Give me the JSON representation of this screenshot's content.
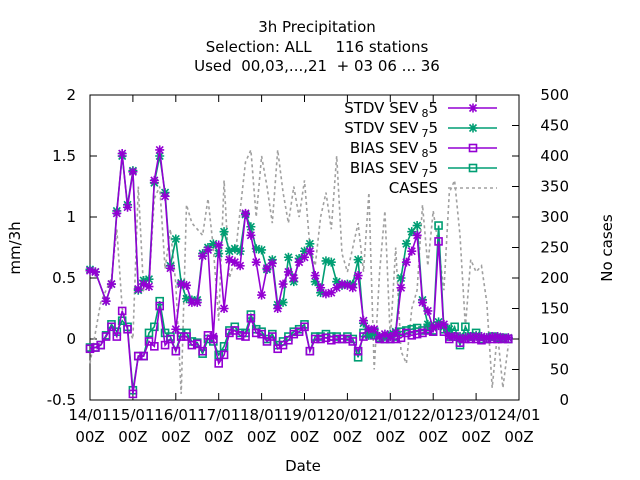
{
  "chart_data": {
    "type": "line",
    "title_lines": [
      "3h Precipitation",
      "Selection: ALL     116 stations",
      "Used  00,03,...,21  + 03 06 ... 36"
    ],
    "xlabel": "Date",
    "ylabel": "mm/3h",
    "y2label": "No cases",
    "x_tick_labels": [
      [
        "14/01",
        "00Z"
      ],
      [
        "15/01",
        "00Z"
      ],
      [
        "16/01",
        "00Z"
      ],
      [
        "17/01",
        "00Z"
      ],
      [
        "18/01",
        "00Z"
      ],
      [
        "19/01",
        "00Z"
      ],
      [
        "20/01",
        "00Z"
      ],
      [
        "21/01",
        "00Z"
      ],
      [
        "22/01",
        "00Z"
      ],
      [
        "23/01",
        "00Z"
      ],
      [
        "24/01",
        "00Z"
      ]
    ],
    "xlim": [
      0,
      10
    ],
    "ylim": [
      -0.5,
      2
    ],
    "y_ticks": [
      "-0.5",
      "0",
      "0.5",
      "1",
      "1.5",
      "2"
    ],
    "y2lim": [
      0,
      500
    ],
    "y2_ticks": [
      "0",
      "50",
      "100",
      "150",
      "200",
      "250",
      "300",
      "350",
      "400",
      "450",
      "500"
    ],
    "legend_position": "top-right",
    "series": [
      {
        "legend": "STDV SEV",
        "sub": "8",
        "suffix": "5",
        "color": "#9400d3",
        "marker": "x",
        "axis": "left",
        "x": [
          0.0,
          0.125,
          0.375,
          0.5,
          0.625,
          0.75,
          0.875,
          1.0,
          1.125,
          1.25,
          1.375,
          1.5,
          1.625,
          1.75,
          1.875,
          2.0,
          2.125,
          2.25,
          2.375,
          2.5,
          2.625,
          2.75,
          2.875,
          3.0,
          3.125,
          3.25,
          3.375,
          3.5,
          3.625,
          3.75,
          3.875,
          4.0,
          4.125,
          4.25,
          4.375,
          4.5,
          4.625,
          4.75,
          4.875,
          5.0,
          5.125,
          5.25,
          5.375,
          5.5,
          5.625,
          5.75,
          5.875,
          6.0,
          6.125,
          6.25,
          6.375,
          6.5,
          6.625,
          6.75,
          6.875,
          7.0,
          7.125,
          7.25,
          7.375,
          7.5,
          7.625,
          7.75,
          7.875,
          8.0,
          8.125,
          8.25,
          8.375,
          8.5,
          8.625,
          8.75,
          8.875,
          9.0,
          9.125,
          9.25,
          9.375,
          9.5,
          9.625,
          9.75
        ],
        "y": [
          0.56,
          0.55,
          0.31,
          0.45,
          1.03,
          1.52,
          1.08,
          1.37,
          0.41,
          0.45,
          0.43,
          1.3,
          1.55,
          1.17,
          0.58,
          0.08,
          0.45,
          0.44,
          0.3,
          0.3,
          0.68,
          0.73,
          0.02,
          0.77,
          0.25,
          0.65,
          0.63,
          0.6,
          1.03,
          0.85,
          0.63,
          0.36,
          0.58,
          0.62,
          0.25,
          0.45,
          0.55,
          0.5,
          0.63,
          0.67,
          0.72,
          0.52,
          0.42,
          0.37,
          0.38,
          0.42,
          0.45,
          0.44,
          0.42,
          0.52,
          0.15,
          0.08,
          0.08,
          0.02,
          0.04,
          0.02,
          0.05,
          0.42,
          0.63,
          0.72,
          0.85,
          0.3,
          0.23,
          0.09,
          0.11,
          0.12,
          0.02,
          0.02,
          0.01,
          0.01,
          0.02,
          0.02,
          0.02,
          0.01,
          0.02,
          0.02,
          0.01,
          0.01
        ]
      },
      {
        "legend": "STDV SEV",
        "sub": "7",
        "suffix": "5",
        "color": "#009e73",
        "marker": "x",
        "axis": "left",
        "x": [
          0.0,
          0.125,
          0.375,
          0.5,
          0.625,
          0.75,
          0.875,
          1.0,
          1.125,
          1.25,
          1.375,
          1.5,
          1.625,
          1.75,
          1.875,
          2.0,
          2.125,
          2.25,
          2.375,
          2.5,
          2.625,
          2.75,
          2.875,
          3.0,
          3.125,
          3.25,
          3.375,
          3.5,
          3.625,
          3.75,
          3.875,
          4.0,
          4.125,
          4.25,
          4.375,
          4.5,
          4.625,
          4.75,
          4.875,
          5.0,
          5.125,
          5.25,
          5.375,
          5.5,
          5.625,
          5.75,
          5.875,
          6.0,
          6.125,
          6.25,
          6.375,
          6.5,
          6.625,
          6.75,
          6.875,
          7.0,
          7.125,
          7.25,
          7.375,
          7.5,
          7.625,
          7.75,
          7.875,
          8.0,
          8.125,
          8.25,
          8.375,
          8.5,
          8.625,
          8.75,
          8.875,
          9.0,
          9.125,
          9.25,
          9.375,
          9.5,
          9.625,
          9.75
        ],
        "y": [
          0.57,
          0.55,
          0.31,
          0.45,
          1.05,
          1.5,
          1.1,
          1.38,
          0.4,
          0.48,
          0.49,
          1.28,
          1.5,
          1.2,
          0.6,
          0.82,
          0.46,
          0.33,
          0.32,
          0.32,
          0.7,
          0.75,
          0.78,
          0.7,
          0.88,
          0.72,
          0.74,
          0.72,
          1.02,
          0.92,
          0.74,
          0.73,
          0.57,
          0.65,
          0.28,
          0.3,
          0.67,
          0.47,
          0.66,
          0.72,
          0.78,
          0.47,
          0.38,
          0.64,
          0.63,
          0.47,
          0.44,
          0.45,
          0.45,
          0.65,
          0.13,
          0.03,
          0.04,
          0.02,
          0.02,
          0.04,
          0.06,
          0.5,
          0.78,
          0.88,
          0.93,
          0.32,
          0.12,
          0.1,
          0.14,
          0.1,
          0.08,
          0.02,
          0.02,
          0.02,
          0.02,
          0.03,
          0.02,
          0.01,
          0.02,
          0.02,
          0.01,
          0.01
        ]
      },
      {
        "legend": "BIAS SEV",
        "sub": "8",
        "suffix": "5",
        "color": "#9400d3",
        "marker": "square",
        "axis": "left",
        "x": [
          0.0,
          0.125,
          0.25,
          0.375,
          0.5,
          0.625,
          0.75,
          0.875,
          1.0,
          1.125,
          1.25,
          1.375,
          1.5,
          1.625,
          1.75,
          1.875,
          2.0,
          2.125,
          2.25,
          2.375,
          2.5,
          2.625,
          2.75,
          2.875,
          3.0,
          3.125,
          3.25,
          3.375,
          3.5,
          3.625,
          3.75,
          3.875,
          4.0,
          4.125,
          4.25,
          4.375,
          4.5,
          4.625,
          4.75,
          4.875,
          5.0,
          5.125,
          5.25,
          5.375,
          5.5,
          5.625,
          5.75,
          5.875,
          6.0,
          6.125,
          6.25,
          6.375,
          6.5,
          6.625,
          6.75,
          6.875,
          7.0,
          7.125,
          7.25,
          7.375,
          7.5,
          7.625,
          7.75,
          7.875,
          8.0,
          8.125,
          8.25,
          8.375,
          8.5,
          8.625,
          8.75,
          8.875,
          9.0,
          9.125,
          9.25,
          9.375,
          9.5,
          9.625,
          9.75
        ],
        "y": [
          -0.08,
          -0.07,
          -0.05,
          0.02,
          0.1,
          0.02,
          0.23,
          0.08,
          -0.45,
          -0.14,
          -0.14,
          -0.02,
          -0.06,
          0.27,
          -0.05,
          0.0,
          -0.1,
          0.02,
          0.02,
          -0.05,
          -0.04,
          -0.1,
          0.03,
          0.0,
          -0.2,
          -0.13,
          0.05,
          0.07,
          0.03,
          0.02,
          0.17,
          0.05,
          0.04,
          -0.02,
          0.02,
          -0.08,
          -0.05,
          -0.01,
          0.04,
          0.06,
          0.1,
          -0.1,
          0.0,
          0.0,
          0.01,
          -0.01,
          0.0,
          0.0,
          0.0,
          -0.02,
          -0.1,
          0.02,
          0.04,
          0.03,
          0.0,
          0.0,
          0.0,
          0.0,
          0.01,
          0.05,
          0.03,
          0.04,
          0.05,
          0.07,
          0.06,
          0.8,
          0.06,
          0.0,
          0.02,
          -0.03,
          0.0,
          0.0,
          0.0,
          -0.01,
          0.0,
          0.0,
          0.0,
          0.0,
          0.0
        ]
      },
      {
        "legend": "BIAS SEV",
        "sub": "7",
        "suffix": "5",
        "color": "#009e73",
        "marker": "square",
        "axis": "left",
        "x": [
          0.0,
          0.125,
          0.25,
          0.375,
          0.5,
          0.625,
          0.75,
          0.875,
          1.0,
          1.125,
          1.25,
          1.375,
          1.5,
          1.625,
          1.75,
          1.875,
          2.0,
          2.125,
          2.25,
          2.375,
          2.5,
          2.625,
          2.75,
          2.875,
          3.0,
          3.125,
          3.25,
          3.375,
          3.5,
          3.625,
          3.75,
          3.875,
          4.0,
          4.125,
          4.25,
          4.375,
          4.5,
          4.625,
          4.75,
          4.875,
          5.0,
          5.125,
          5.25,
          5.375,
          5.5,
          5.625,
          5.75,
          5.875,
          6.0,
          6.125,
          6.25,
          6.375,
          6.5,
          6.625,
          6.75,
          6.875,
          7.0,
          7.125,
          7.25,
          7.375,
          7.5,
          7.625,
          7.75,
          7.875,
          8.0,
          8.125,
          8.25,
          8.375,
          8.5,
          8.625,
          8.75,
          8.875,
          9.0,
          9.125,
          9.25,
          9.375,
          9.5,
          9.625,
          9.75
        ],
        "y": [
          -0.07,
          -0.07,
          -0.05,
          0.03,
          0.12,
          0.06,
          0.15,
          0.1,
          -0.42,
          -0.14,
          -0.14,
          0.05,
          0.1,
          0.31,
          0.05,
          0.02,
          -0.1,
          0.05,
          0.05,
          -0.02,
          -0.03,
          -0.12,
          0.0,
          -0.02,
          -0.13,
          -0.06,
          0.07,
          0.1,
          0.05,
          0.05,
          0.2,
          0.08,
          0.06,
          0.0,
          0.04,
          -0.05,
          -0.02,
          0.02,
          0.06,
          0.08,
          0.12,
          -0.1,
          0.02,
          0.02,
          0.04,
          0.02,
          0.02,
          0.0,
          0.02,
          0.0,
          -0.15,
          0.05,
          0.06,
          0.06,
          0.01,
          0.0,
          0.0,
          0.02,
          0.06,
          0.07,
          0.08,
          0.09,
          0.07,
          0.08,
          0.07,
          0.93,
          0.08,
          0.02,
          0.1,
          -0.05,
          0.1,
          0.02,
          0.05,
          0.0,
          0.0,
          0.02,
          0.01,
          0.01,
          0.0
        ]
      },
      {
        "legend": "CASES",
        "color": "#a0a0a0",
        "marker": "none",
        "dashed": true,
        "axis": "right",
        "x": [
          0.0,
          0.25,
          0.5,
          0.625,
          0.75,
          0.875,
          1.0,
          1.125,
          1.25,
          1.375,
          1.5,
          1.625,
          1.75,
          1.875,
          2.0,
          2.125,
          2.25,
          2.375,
          2.5,
          2.625,
          2.75,
          2.875,
          3.0,
          3.125,
          3.25,
          3.375,
          3.5,
          3.625,
          3.75,
          3.875,
          4.0,
          4.125,
          4.25,
          4.375,
          4.5,
          4.625,
          4.75,
          4.875,
          5.0,
          5.125,
          5.25,
          5.375,
          5.5,
          5.625,
          5.75,
          5.875,
          6.0,
          6.125,
          6.25,
          6.375,
          6.5,
          6.625,
          6.75,
          6.875,
          7.0,
          7.125,
          7.25,
          7.375,
          7.5,
          7.625,
          7.75,
          7.875,
          8.0,
          8.125,
          8.25,
          8.375,
          8.5,
          8.625,
          8.75,
          8.875,
          9.0,
          9.125,
          9.25,
          9.375,
          9.5,
          9.625,
          9.75
        ],
        "y": [
          60,
          160,
          200,
          280,
          150,
          120,
          100,
          350,
          180,
          190,
          330,
          350,
          215,
          280,
          190,
          10,
          320,
          290,
          280,
          270,
          330,
          250,
          130,
          360,
          200,
          230,
          310,
          390,
          410,
          300,
          400,
          350,
          290,
          410,
          340,
          290,
          350,
          300,
          360,
          250,
          220,
          300,
          340,
          280,
          400,
          240,
          210,
          250,
          290,
          210,
          340,
          50,
          210,
          310,
          100,
          250,
          80,
          60,
          150,
          180,
          320,
          220,
          310,
          250,
          180,
          340,
          360,
          270,
          120,
          230,
          210,
          220,
          160,
          20,
          110,
          20,
          90
        ]
      }
    ]
  }
}
